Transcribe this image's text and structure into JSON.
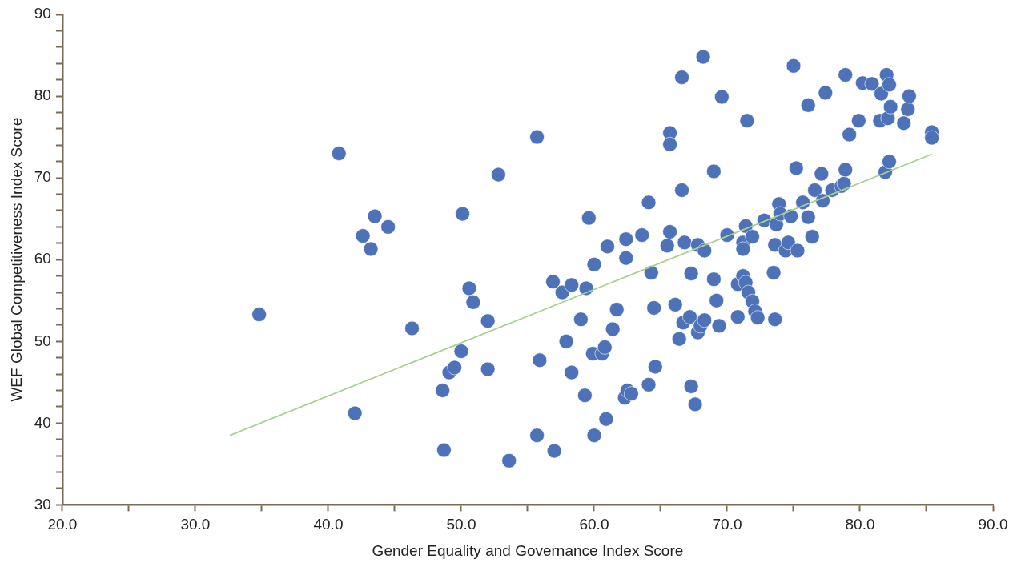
{
  "chart_data": {
    "type": "scatter",
    "xlabel": "Gender Equality and Governance Index Score",
    "ylabel": "WEF Global Competitiveness Index Score",
    "xlim": [
      20,
      90
    ],
    "ylim": [
      30,
      90
    ],
    "xticks": [
      {
        "value": 20,
        "label": "20.0"
      },
      {
        "value": 25,
        "label": null
      },
      {
        "value": 30,
        "label": "30.0"
      },
      {
        "value": 35,
        "label": null
      },
      {
        "value": 40,
        "label": "40.0"
      },
      {
        "value": 45,
        "label": null
      },
      {
        "value": 50,
        "label": "50.0"
      },
      {
        "value": 55,
        "label": null
      },
      {
        "value": 60,
        "label": "60.0"
      },
      {
        "value": 65,
        "label": null
      },
      {
        "value": 70,
        "label": "70.0"
      },
      {
        "value": 75,
        "label": null
      },
      {
        "value": 80,
        "label": "80.0"
      },
      {
        "value": 85,
        "label": null
      },
      {
        "value": 90,
        "label": "90.0"
      }
    ],
    "yticks": [
      30,
      {
        "value": 32,
        "label": null
      },
      {
        "value": 34,
        "label": null
      },
      {
        "value": 36,
        "label": null
      },
      {
        "value": 38,
        "label": null
      },
      40,
      {
        "value": 42,
        "label": null
      },
      {
        "value": 44,
        "label": null
      },
      {
        "value": 46,
        "label": null
      },
      {
        "value": 48,
        "label": null
      },
      50,
      {
        "value": 52,
        "label": null
      },
      {
        "value": 54,
        "label": null
      },
      {
        "value": 56,
        "label": null
      },
      {
        "value": 58,
        "label": null
      },
      60,
      {
        "value": 62,
        "label": null
      },
      {
        "value": 64,
        "label": null
      },
      {
        "value": 66,
        "label": null
      },
      {
        "value": 68,
        "label": null
      },
      70,
      {
        "value": 72,
        "label": null
      },
      {
        "value": 74,
        "label": null
      },
      {
        "value": 76,
        "label": null
      },
      {
        "value": 78,
        "label": null
      },
      80,
      {
        "value": 82,
        "label": null
      },
      {
        "value": 84,
        "label": null
      },
      {
        "value": 86,
        "label": null
      },
      {
        "value": 88,
        "label": null
      },
      90
    ],
    "grid": false,
    "legend": false,
    "marker": "circle",
    "series": [
      {
        "color": "#4e72b8",
        "x": [
          34.8,
          40.8,
          42.0,
          42.6,
          43.2,
          43.5,
          44.5,
          46.3,
          48.6,
          48.7,
          49.1,
          49.5,
          50.0,
          50.1,
          50.6,
          50.9,
          52.0,
          52.0,
          52.8,
          53.6,
          55.7,
          55.7,
          55.9,
          56.9,
          57.0,
          57.6,
          57.9,
          58.3,
          58.3,
          59.0,
          59.3,
          59.4,
          59.6,
          60.0,
          60.0,
          59.9,
          60.6,
          60.8,
          61.0,
          60.9,
          61.4,
          61.7,
          62.4,
          62.4,
          62.3,
          62.5,
          62.8,
          63.6,
          64.1,
          64.1,
          64.3,
          64.5,
          64.6,
          65.7,
          65.7,
          65.5,
          65.7,
          66.1,
          66.4,
          66.6,
          66.6,
          66.8,
          66.7,
          67.2,
          67.3,
          67.3,
          67.6,
          67.8,
          67.8,
          68.2,
          68.3,
          68.0,
          68.3,
          69.0,
          69.0,
          69.2,
          69.4,
          69.6,
          70.0,
          70.8,
          70.8,
          71.2,
          71.2,
          71.2,
          71.4,
          71.5,
          71.4,
          71.6,
          71.9,
          71.9,
          72.1,
          72.3,
          72.8,
          73.5,
          73.6,
          73.7,
          73.6,
          73.9,
          74.0,
          74.4,
          74.6,
          74.8,
          75.0,
          75.2,
          75.3,
          75.7,
          76.1,
          76.1,
          76.4,
          76.6,
          77.1,
          77.2,
          77.4,
          77.9,
          78.6,
          78.8,
          78.9,
          78.9,
          79.2,
          79.9,
          80.2,
          80.9,
          81.5,
          81.6,
          81.9,
          82.0,
          82.1,
          82.2,
          82.2,
          82.3,
          83.3,
          83.6,
          83.7,
          85.4,
          85.4
        ],
        "values": [
          53.3,
          73.0,
          41.2,
          62.9,
          61.3,
          65.3,
          64.0,
          51.6,
          44.0,
          36.7,
          46.2,
          46.8,
          48.8,
          65.6,
          56.5,
          54.8,
          52.5,
          46.6,
          70.4,
          35.4,
          75.0,
          38.5,
          47.7,
          57.3,
          36.6,
          56.0,
          50.0,
          46.2,
          56.9,
          52.7,
          43.4,
          56.5,
          65.1,
          59.4,
          38.5,
          48.5,
          48.5,
          49.3,
          61.6,
          40.5,
          51.5,
          53.9,
          62.5,
          60.2,
          43.1,
          44.0,
          43.6,
          63.0,
          67.0,
          44.7,
          58.4,
          54.1,
          46.9,
          75.5,
          74.1,
          61.7,
          63.4,
          54.5,
          50.3,
          82.3,
          68.5,
          62.1,
          52.3,
          53.0,
          44.5,
          58.3,
          42.3,
          61.8,
          51.1,
          84.8,
          61.1,
          51.9,
          52.6,
          70.8,
          57.6,
          55.0,
          51.9,
          79.9,
          63.0,
          53.0,
          57.0,
          62.1,
          61.3,
          58.0,
          57.2,
          77.0,
          64.1,
          56.0,
          62.8,
          54.9,
          53.7,
          52.9,
          64.8,
          58.4,
          61.8,
          64.3,
          52.7,
          66.8,
          65.6,
          61.1,
          62.1,
          65.3,
          83.7,
          71.2,
          61.1,
          67.0,
          78.9,
          65.2,
          62.8,
          68.5,
          70.5,
          67.2,
          80.4,
          68.5,
          69.0,
          69.3,
          71.0,
          82.6,
          75.3,
          77.0,
          81.6,
          81.5,
          77.0,
          80.3,
          70.7,
          82.6,
          77.3,
          81.4,
          72.0,
          78.7,
          76.7,
          78.4,
          80.0,
          75.6,
          74.9
        ]
      },
      {
        "type": "line",
        "color": "#a9d18e",
        "marker": "none",
        "x": [
          32.6,
          85.4
        ],
        "values": [
          38.5,
          72.9
        ]
      }
    ]
  }
}
